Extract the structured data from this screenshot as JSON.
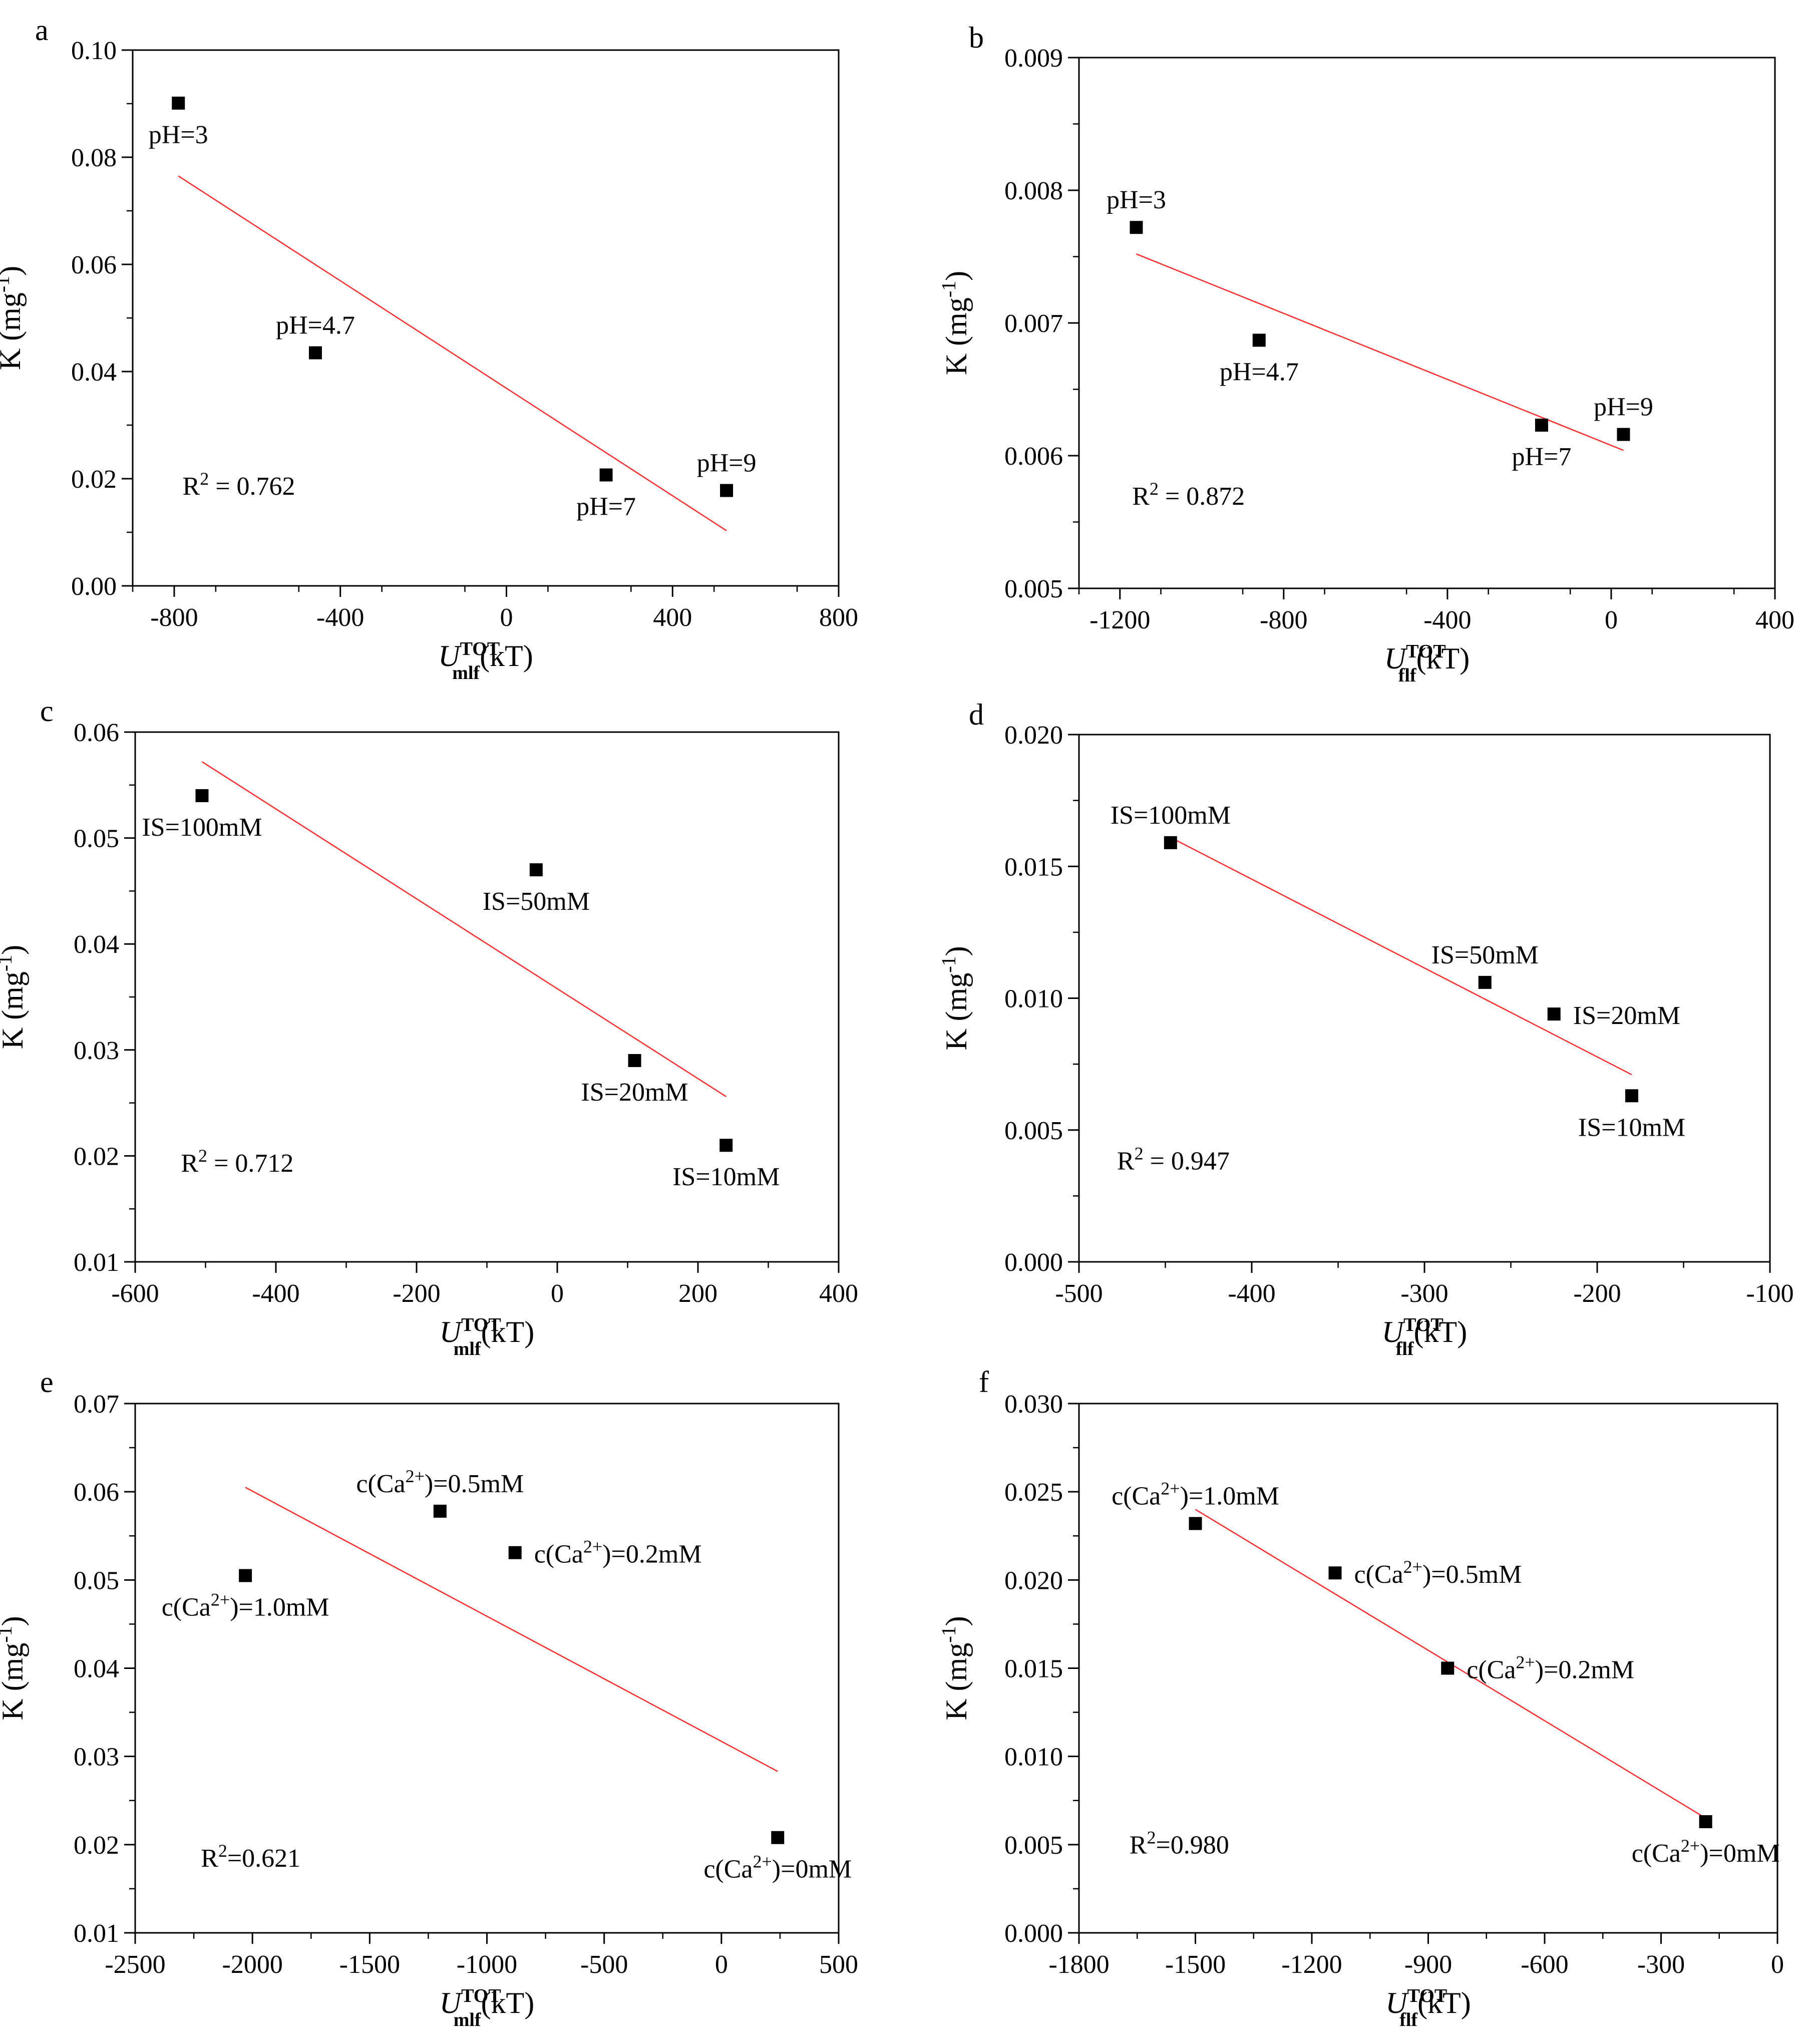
{
  "chart_data": [
    {
      "panel": "a",
      "type": "scatter",
      "ylabel": "K (mg-1)",
      "xlabel_var": "U",
      "xlabel_sub": "mlf",
      "xlabel_sup": "TOT",
      "xlabel_unit": "(kT)",
      "xlim": [
        -900,
        800
      ],
      "ylim": [
        0.0,
        0.1
      ],
      "xticks": [
        -800,
        -400,
        0,
        400,
        800
      ],
      "xtick_labels": [
        "-800",
        "-400",
        "0",
        "400",
        "800"
      ],
      "yticks": [
        0.0,
        0.02,
        0.04,
        0.06,
        0.08,
        0.1
      ],
      "ytick_labels": [
        "0.00",
        "0.02",
        "0.04",
        "0.06",
        "0.08",
        "0.10"
      ],
      "points": [
        {
          "x": -790,
          "y": 0.0901,
          "label": "pH=3",
          "pos": "below"
        },
        {
          "x": -460,
          "y": 0.0435,
          "label": "pH=4.7",
          "pos": "above"
        },
        {
          "x": 240,
          "y": 0.0207,
          "label": "pH=7",
          "pos": "below"
        },
        {
          "x": 530,
          "y": 0.0178,
          "label": "pH=9",
          "pos": "above"
        }
      ],
      "fit": {
        "x": [
          -790,
          530
        ],
        "y": [
          0.0765,
          0.0103
        ]
      },
      "r2": "R2 = 0.762",
      "r2_pos": [
        -780,
        0.017
      ]
    },
    {
      "panel": "b",
      "type": "scatter",
      "ylabel": "K (mg-1)",
      "xlabel_var": "U",
      "xlabel_sub": "flf",
      "xlabel_sup": "TOT",
      "xlabel_unit": "(kT)",
      "xlim": [
        -1300,
        400
      ],
      "ylim": [
        0.005,
        0.009
      ],
      "xticks": [
        -1200,
        -800,
        -400,
        0,
        400
      ],
      "xtick_labels": [
        "-1200",
        "-800",
        "-400",
        "0",
        "400"
      ],
      "yticks": [
        0.005,
        0.006,
        0.007,
        0.008,
        0.009
      ],
      "ytick_labels": [
        "0.005",
        "0.006",
        "0.007",
        "0.008",
        "0.009"
      ],
      "points": [
        {
          "x": -1160,
          "y": 0.00772,
          "label": "pH=3",
          "pos": "above"
        },
        {
          "x": -860,
          "y": 0.00687,
          "label": "pH=4.7",
          "pos": "below"
        },
        {
          "x": -170,
          "y": 0.00623,
          "label": "pH=7",
          "pos": "below"
        },
        {
          "x": 30,
          "y": 0.00616,
          "label": "pH=9",
          "pos": "above"
        }
      ],
      "fit": {
        "x": [
          -1160,
          30
        ],
        "y": [
          0.00752,
          0.00604
        ]
      },
      "r2": "R2 = 0.872",
      "r2_pos": [
        -1170,
        0.00563
      ]
    },
    {
      "panel": "c",
      "type": "scatter",
      "ylabel": "K (mg-1)",
      "xlabel_var": "U",
      "xlabel_sub": "mlf",
      "xlabel_sup": "TOT",
      "xlabel_unit": "(kT)",
      "xlim": [
        -600,
        400
      ],
      "ylim": [
        0.01,
        0.06
      ],
      "xticks": [
        -600,
        -400,
        -200,
        0,
        200,
        400
      ],
      "xtick_labels": [
        "-600",
        "-400",
        "-200",
        "0",
        "200",
        "400"
      ],
      "yticks": [
        0.01,
        0.02,
        0.03,
        0.04,
        0.05,
        0.06
      ],
      "ytick_labels": [
        "0.01",
        "0.02",
        "0.03",
        "0.04",
        "0.05",
        "0.06"
      ],
      "points": [
        {
          "x": -505,
          "y": 0.054,
          "label": "IS=100mM",
          "pos": "below"
        },
        {
          "x": -30,
          "y": 0.047,
          "label": "IS=50mM",
          "pos": "below"
        },
        {
          "x": 110,
          "y": 0.029,
          "label": "IS=20mM",
          "pos": "below"
        },
        {
          "x": 240,
          "y": 0.021,
          "label": "IS=10mM",
          "pos": "below"
        }
      ],
      "fit": {
        "x": [
          -505,
          240
        ],
        "y": [
          0.0572,
          0.0256
        ]
      },
      "r2": "R2 = 0.712",
      "r2_pos": [
        -535,
        0.0185
      ]
    },
    {
      "panel": "d",
      "type": "scatter",
      "ylabel": "K (mg-1)",
      "xlabel_var": "U",
      "xlabel_sub": "flf",
      "xlabel_sup": "TOT",
      "xlabel_unit": "(kT)",
      "xlim": [
        -500,
        -100
      ],
      "ylim": [
        0.0,
        0.02
      ],
      "xticks": [
        -500,
        -400,
        -300,
        -200,
        -100
      ],
      "xtick_labels": [
        "-500",
        "-400",
        "-300",
        "-200",
        "-100"
      ],
      "yticks": [
        0.0,
        0.005,
        0.01,
        0.015,
        0.02
      ],
      "ytick_labels": [
        "0.000",
        "0.005",
        "0.010",
        "0.015",
        "0.020"
      ],
      "points": [
        {
          "x": -447,
          "y": 0.0159,
          "label": "IS=100mM",
          "pos": "above"
        },
        {
          "x": -265,
          "y": 0.0106,
          "label": "IS=50mM",
          "pos": "above"
        },
        {
          "x": -225,
          "y": 0.0094,
          "label": "IS=20mM",
          "pos": "right"
        },
        {
          "x": -180,
          "y": 0.0063,
          "label": "IS=10mM",
          "pos": "below"
        }
      ],
      "fit": {
        "x": [
          -447,
          -180
        ],
        "y": [
          0.0161,
          0.0071
        ]
      },
      "r2": "R2 = 0.947",
      "r2_pos": [
        -478,
        0.0035
      ]
    },
    {
      "panel": "e",
      "type": "scatter",
      "ylabel": "K (mg-1)",
      "xlabel_var": "U",
      "xlabel_sub": "mlf",
      "xlabel_sup": "TOT",
      "xlabel_unit": "(kT)",
      "xlim": [
        -2500,
        500
      ],
      "ylim": [
        0.01,
        0.07
      ],
      "xticks": [
        -2500,
        -2000,
        -1500,
        -1000,
        -500,
        0,
        500
      ],
      "xtick_labels": [
        "-2500",
        "-2000",
        "-1500",
        "-1000",
        "-500",
        "0",
        "500"
      ],
      "yticks": [
        0.01,
        0.02,
        0.03,
        0.04,
        0.05,
        0.06,
        0.07
      ],
      "ytick_labels": [
        "0.01",
        "0.02",
        "0.03",
        "0.04",
        "0.05",
        "0.06",
        "0.07"
      ],
      "points": [
        {
          "x": -2030,
          "y": 0.0505,
          "label": "c(Ca2+)=1.0mM",
          "pos": "below"
        },
        {
          "x": -1200,
          "y": 0.0578,
          "label": "c(Ca2+)=0.5mM",
          "pos": "above"
        },
        {
          "x": -880,
          "y": 0.0531,
          "label": "c(Ca2+)=0.2mM",
          "pos": "right"
        },
        {
          "x": 240,
          "y": 0.0208,
          "label": "c(Ca2+)=0mM",
          "pos": "below"
        }
      ],
      "fit": {
        "x": [
          -2030,
          240
        ],
        "y": [
          0.0605,
          0.0283
        ]
      },
      "r2": "R2=0.621",
      "r2_pos": [
        -2220,
        0.0175
      ]
    },
    {
      "panel": "f",
      "type": "scatter",
      "ylabel": "K (mg-1)",
      "xlabel_var": "U",
      "xlabel_sub": "flf",
      "xlabel_sup": "TOT",
      "xlabel_unit": "(kT)",
      "xlim": [
        -1800,
        0
      ],
      "ylim": [
        0.0,
        0.03
      ],
      "xticks": [
        -1800,
        -1500,
        -1200,
        -900,
        -600,
        -300,
        0
      ],
      "xtick_labels": [
        "-1800",
        "-1500",
        "-1200",
        "-900",
        "-600",
        "-300",
        "0"
      ],
      "yticks": [
        0.0,
        0.005,
        0.01,
        0.015,
        0.02,
        0.025,
        0.03
      ],
      "ytick_labels": [
        "0.000",
        "0.005",
        "0.010",
        "0.015",
        "0.020",
        "0.025",
        "0.030"
      ],
      "points": [
        {
          "x": -1500,
          "y": 0.0232,
          "label": "c(Ca2+)=1.0mM",
          "pos": "above"
        },
        {
          "x": -1140,
          "y": 0.0204,
          "label": "c(Ca2+)=0.5mM",
          "pos": "right"
        },
        {
          "x": -850,
          "y": 0.015,
          "label": "c(Ca2+)=0.2mM",
          "pos": "right"
        },
        {
          "x": -185,
          "y": 0.0063,
          "label": "c(Ca2+)=0mM",
          "pos": "below"
        }
      ],
      "fit": {
        "x": [
          -1500,
          -185
        ],
        "y": [
          0.024,
          0.0065
        ]
      },
      "r2": "R2=0.980",
      "r2_pos": [
        -1670,
        0.0045
      ]
    }
  ]
}
